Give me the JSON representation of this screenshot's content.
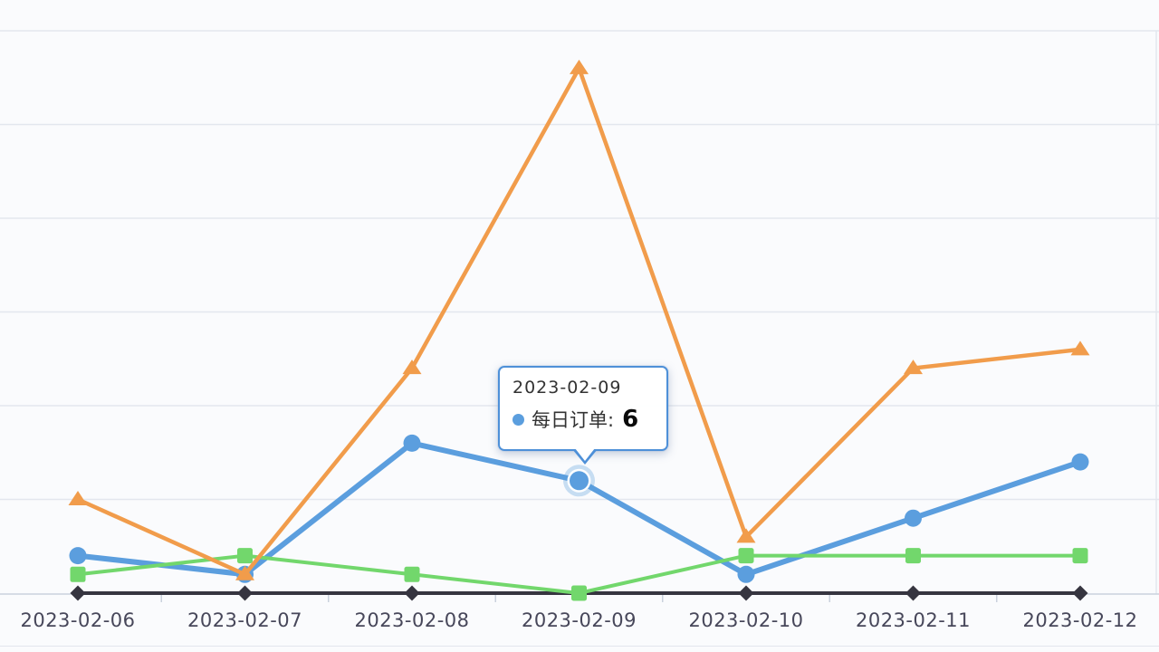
{
  "page": {
    "background": "#fafbfd"
  },
  "chart_data": {
    "type": "line",
    "title": "",
    "xlabel": "",
    "ylabel": "",
    "categories": [
      "2023-02-06",
      "2023-02-07",
      "2023-02-08",
      "2023-02-09",
      "2023-02-10",
      "2023-02-11",
      "2023-02-12"
    ],
    "series": [
      {
        "name": "每日订单",
        "marker": "circle",
        "color": "#5b9ede",
        "line_width": 6,
        "values": [
          2,
          1,
          8,
          6,
          1,
          4,
          7
        ]
      },
      {
        "name": "",
        "marker": "diamond",
        "color": "#363540",
        "line_width": 4,
        "values": [
          0,
          0,
          0,
          0,
          0,
          0,
          0
        ]
      },
      {
        "name": "",
        "marker": "square",
        "color": "#72d76c",
        "line_width": 4,
        "values": [
          1,
          2,
          1,
          0,
          2,
          2,
          2
        ]
      },
      {
        "name": "",
        "marker": "triangle",
        "color": "#f19c4b",
        "line_width": 4.5,
        "values": [
          5,
          1,
          12,
          28,
          3,
          12,
          13
        ]
      }
    ],
    "ylim": [
      0,
      30
    ],
    "y_tick_interval": 5,
    "grid": true,
    "y_axis_labels_visible": false,
    "legend_position": "none"
  },
  "tooltip": {
    "visible": true,
    "header": "2023-02-09",
    "series_label": "每日订单:",
    "value": "6",
    "marker_color": "#5b9ede",
    "border_color": "#4e90d8",
    "highlight_series": 0,
    "highlight_index": 3
  },
  "axis": {
    "line_color": "#c9d1dd",
    "grid_color": "#e3e7ee",
    "label_color": "#47475a"
  }
}
